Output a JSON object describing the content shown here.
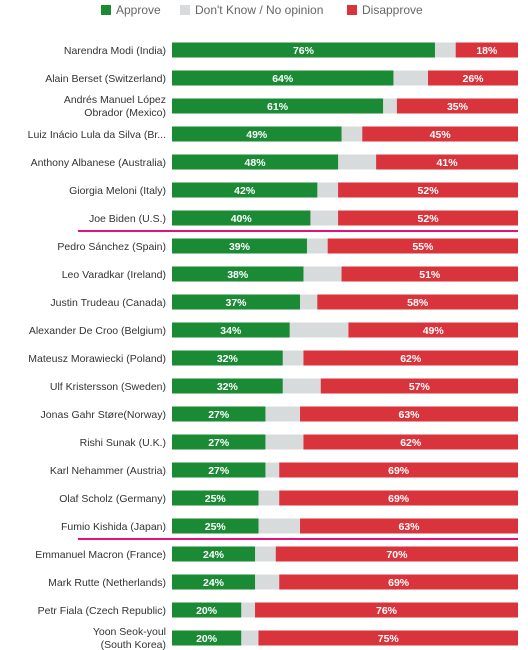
{
  "chart_data": {
    "type": "bar",
    "orientation": "horizontal",
    "stacked": true,
    "xlim": [
      0,
      100
    ],
    "legend_position": "top",
    "colors": {
      "approve": "#1a8a35",
      "dont_know": "#d8dbdb",
      "disapprove": "#d9333c",
      "highlight": "#e4117d"
    },
    "legend": [
      {
        "key": "approve",
        "label": "Approve"
      },
      {
        "key": "dont_know",
        "label": "Don't Know / No opinion"
      },
      {
        "key": "disapprove",
        "label": "Disapprove"
      }
    ],
    "categories": [
      [
        "Narendra Modi (India)"
      ],
      [
        "Alain Berset (Switzerland)"
      ],
      [
        "Andrés Manuel López",
        "Obrador (Mexico)"
      ],
      [
        "Luiz Inácio Lula da Silva (Br..."
      ],
      [
        "Anthony Albanese (Australia)"
      ],
      [
        "Giorgia Meloni (Italy)"
      ],
      [
        "Joe Biden (U.S.)"
      ],
      [
        "Pedro Sánchez (Spain)"
      ],
      [
        "Leo Varadkar (Ireland)"
      ],
      [
        "Justin Trudeau (Canada)"
      ],
      [
        "Alexander De Croo (Belgium)"
      ],
      [
        "Mateusz Morawiecki (Poland)"
      ],
      [
        "Ulf Kristersson (Sweden)"
      ],
      [
        "Jonas Gahr Støre(Norway)"
      ],
      [
        "Rishi Sunak (U.K.)"
      ],
      [
        "Karl Nehammer (Austria)"
      ],
      [
        "Olaf Scholz (Germany)"
      ],
      [
        "Fumio Kishida (Japan)"
      ],
      [
        "Emmanuel Macron (France)"
      ],
      [
        "Mark Rutte (Netherlands)"
      ],
      [
        "Petr Fiala (Czech Republic)"
      ],
      [
        "Yoon Seok-youl",
        "(South Korea)"
      ]
    ],
    "approve": [
      76,
      64,
      61,
      49,
      48,
      42,
      40,
      39,
      38,
      37,
      34,
      32,
      32,
      27,
      27,
      27,
      25,
      25,
      24,
      24,
      20,
      20
    ],
    "disapprove": [
      18,
      26,
      35,
      45,
      41,
      52,
      52,
      55,
      51,
      58,
      49,
      62,
      57,
      63,
      62,
      69,
      69,
      63,
      70,
      69,
      76,
      75
    ],
    "value_suffix": "%",
    "highlighted": [
      "Joe Biden (U.S.)",
      "Fumio Kishida (Japan)",
      "Yoon Seok-youl"
    ]
  }
}
